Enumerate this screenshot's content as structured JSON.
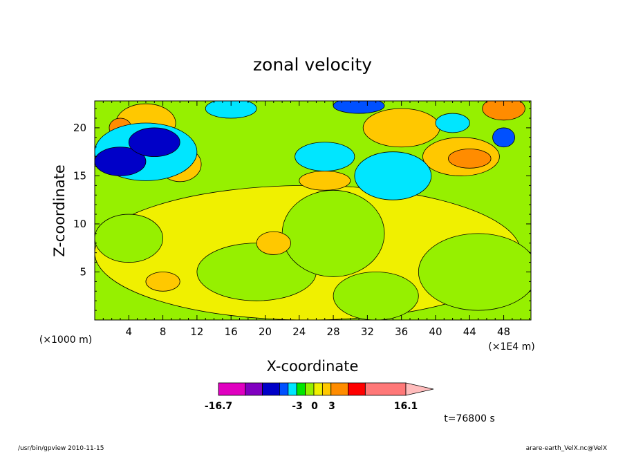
{
  "chart_data": {
    "type": "heatmap",
    "title": "zonal velocity",
    "xlabel": "X-coordinate",
    "ylabel": "Z-coordinate",
    "x_unit": "(×1E4 m)",
    "y_unit": "(×1000 m)",
    "xlim": [
      0,
      51.2
    ],
    "ylim": [
      0,
      22.8
    ],
    "x_ticks": [
      4,
      8,
      12,
      16,
      20,
      24,
      28,
      32,
      36,
      40,
      44,
      48
    ],
    "y_ticks": [
      5,
      10,
      15,
      20
    ],
    "x_tick_labels": [
      "4",
      "8",
      "12",
      "16",
      "20",
      "24",
      "28",
      "32",
      "36",
      "40",
      "44",
      "48"
    ],
    "y_tick_labels": [
      "5",
      "10",
      "15",
      "20"
    ],
    "colorbar": {
      "min_label": "-16.7",
      "max_label": "16.1",
      "mid_labels": [
        "-3",
        "0",
        "3"
      ],
      "min_value": -16.7,
      "max_value": 16.1,
      "levels": [
        {
          "from": -16.7,
          "to": -12,
          "color": "#e000c0"
        },
        {
          "from": -12,
          "to": -9,
          "color": "#8000c0"
        },
        {
          "from": -9,
          "to": -6,
          "color": "#0000c8"
        },
        {
          "from": -6,
          "to": -4.5,
          "color": "#0050ff"
        },
        {
          "from": -4.5,
          "to": -3,
          "color": "#00e6ff"
        },
        {
          "from": -3,
          "to": -1.5,
          "color": "#00e600"
        },
        {
          "from": -1.5,
          "to": 0,
          "color": "#96f000"
        },
        {
          "from": 0,
          "to": 1.5,
          "color": "#f0f000"
        },
        {
          "from": 1.5,
          "to": 3,
          "color": "#ffc800"
        },
        {
          "from": 3,
          "to": 6,
          "color": "#ff8c00"
        },
        {
          "from": 6,
          "to": 9,
          "color": "#ff0000"
        },
        {
          "from": 9,
          "to": 16.1,
          "color": "#ff7878"
        }
      ],
      "overflow_color": "#ffbcbc"
    },
    "regions_approx": [
      {
        "shape": "ellipse",
        "x": 25,
        "y": 7,
        "rx": 25,
        "ry": 7,
        "value": 0.5
      },
      {
        "shape": "ellipse",
        "x": 4,
        "y": 8.5,
        "rx": 4,
        "ry": 2.5,
        "value": -0.7
      },
      {
        "shape": "ellipse",
        "x": 19,
        "y": 5,
        "rx": 7,
        "ry": 3,
        "value": -0.7
      },
      {
        "shape": "ellipse",
        "x": 28,
        "y": 9,
        "rx": 6,
        "ry": 4.5,
        "value": -0.7
      },
      {
        "shape": "ellipse",
        "x": 45,
        "y": 5,
        "rx": 7,
        "ry": 4,
        "value": -0.7
      },
      {
        "shape": "ellipse",
        "x": 33,
        "y": 2.5,
        "rx": 5,
        "ry": 2.5,
        "value": -0.7
      },
      {
        "shape": "ellipse",
        "x": 8,
        "y": 4,
        "rx": 2,
        "ry": 1,
        "value": 2
      },
      {
        "shape": "ellipse",
        "x": 21,
        "y": 8,
        "rx": 2,
        "ry": 1.2,
        "value": 2
      },
      {
        "shape": "ellipse",
        "x": 27,
        "y": 14.5,
        "rx": 3,
        "ry": 1,
        "value": 2
      },
      {
        "shape": "ellipse",
        "x": 6,
        "y": 20.5,
        "rx": 3.5,
        "ry": 2,
        "value": 2
      },
      {
        "shape": "ellipse",
        "x": 3,
        "y": 20,
        "rx": 1.3,
        "ry": 1,
        "value": 4
      },
      {
        "shape": "ellipse",
        "x": 10,
        "y": 16.2,
        "rx": 2.5,
        "ry": 1.8,
        "value": 2
      },
      {
        "shape": "ellipse",
        "x": 10,
        "y": 16.2,
        "rx": 1,
        "ry": 0.8,
        "value": 4
      },
      {
        "shape": "ellipse",
        "x": 36,
        "y": 20,
        "rx": 4.5,
        "ry": 2,
        "value": 2
      },
      {
        "shape": "ellipse",
        "x": 43,
        "y": 17,
        "rx": 4.5,
        "ry": 2,
        "value": 2
      },
      {
        "shape": "ellipse",
        "x": 44,
        "y": 16.8,
        "rx": 2.5,
        "ry": 1,
        "value": 4
      },
      {
        "shape": "ellipse",
        "x": 48,
        "y": 22,
        "rx": 2.5,
        "ry": 1.2,
        "value": 4
      },
      {
        "shape": "ellipse",
        "x": 6,
        "y": 17.5,
        "rx": 6,
        "ry": 3,
        "value": -3.5
      },
      {
        "shape": "ellipse",
        "x": 3,
        "y": 16.5,
        "rx": 3,
        "ry": 1.5,
        "value": -7
      },
      {
        "shape": "ellipse",
        "x": 7,
        "y": 18.5,
        "rx": 3,
        "ry": 1.5,
        "value": -7
      },
      {
        "shape": "ellipse",
        "x": 35,
        "y": 15,
        "rx": 4.5,
        "ry": 2.5,
        "value": -3.5
      },
      {
        "shape": "ellipse",
        "x": 27,
        "y": 17,
        "rx": 3.5,
        "ry": 1.5,
        "value": -3.5
      },
      {
        "shape": "ellipse",
        "x": 16,
        "y": 22,
        "rx": 3,
        "ry": 1,
        "value": -3.5
      },
      {
        "shape": "ellipse",
        "x": 31,
        "y": 22.3,
        "rx": 3,
        "ry": 0.8,
        "value": -5
      },
      {
        "shape": "ellipse",
        "x": 48,
        "y": 19,
        "rx": 1.3,
        "ry": 1,
        "value": -5
      },
      {
        "shape": "ellipse",
        "x": 42,
        "y": 20.5,
        "rx": 2,
        "ry": 1,
        "value": -3.5
      }
    ]
  },
  "footer": {
    "left": "/usr/bin/gpview  2010-11-15",
    "right": "arare-earth_VelX.nc@VelX",
    "time": "t=76800 s"
  }
}
